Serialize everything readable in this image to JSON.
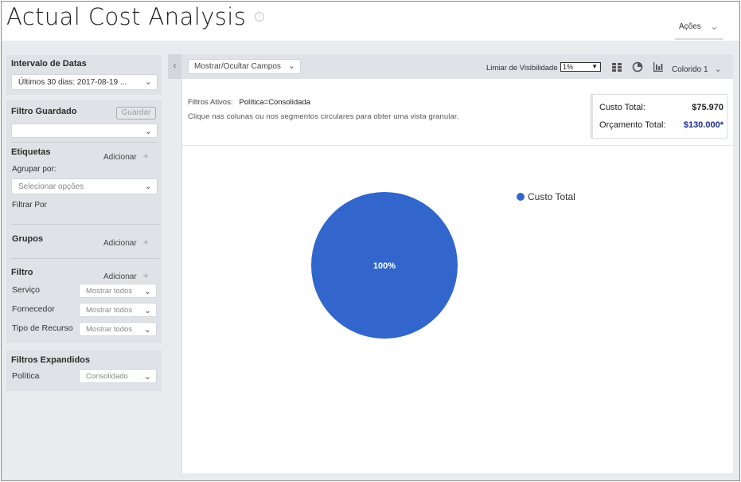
{
  "header": {
    "title": "Actual Cost Analysis",
    "actions_label": "Ações"
  },
  "sidebar": {
    "date_range": {
      "label": "Intervalo de Datas",
      "value": "Últimos 30 dias: 2017-08-19 ..."
    },
    "saved_filter": {
      "label": "Filtro Guardado",
      "save_button": "Guardar",
      "value": ""
    },
    "tags": {
      "label": "Etiquetas",
      "add_label": "Adicionar",
      "group_by_label": "Agrupar por:",
      "group_by_placeholder": "Selecionar opções",
      "filter_by_label": "Filtrar Por"
    },
    "groups": {
      "label": "Grupos",
      "add_label": "Adicionar"
    },
    "filter": {
      "label": "Filtro",
      "add_label": "Adicionar",
      "rows": [
        {
          "label": "Serviço",
          "value": "Mostrar todos"
        },
        {
          "label": "Fornecedor",
          "value": "Mostrar todos"
        },
        {
          "label": "Tipo de Recurso",
          "value": "Mostrar todos"
        }
      ]
    },
    "expanded_filters": {
      "label": "Filtros Expandidos",
      "rows": [
        {
          "label": "Política",
          "value": "Consolidado"
        }
      ]
    }
  },
  "toolbar": {
    "fields_button": "Mostrar/Ocultar Campos",
    "visibility_label": "Limiar de Visibilidade",
    "visibility_value": "1%",
    "icons": [
      "table-icon",
      "pie-chart-icon",
      "bar-chart-icon"
    ],
    "color_scheme": "Colorido 1"
  },
  "content": {
    "active_filters_label": "Filtros Ativos:",
    "active_filters_value": "Política=Consolidada",
    "hint": "Clique nas colunas ou nos segmentos circulares para obter uma vista granular.",
    "summary": {
      "total_cost_label": "Custo Total:",
      "total_cost_value": "$75.970",
      "budget_label": "Orçamento Total:",
      "budget_value": "$130.000*"
    }
  },
  "colors": {
    "pie": "#3266cc",
    "budget_value": "#1a2f8a",
    "panel": "#dfe2e6"
  },
  "chart_data": {
    "type": "pie",
    "slices": [
      {
        "name": "Custo Total",
        "value": 100,
        "label": "100%"
      }
    ],
    "legend": [
      "Custo Total"
    ],
    "legend_position": "top-right"
  }
}
